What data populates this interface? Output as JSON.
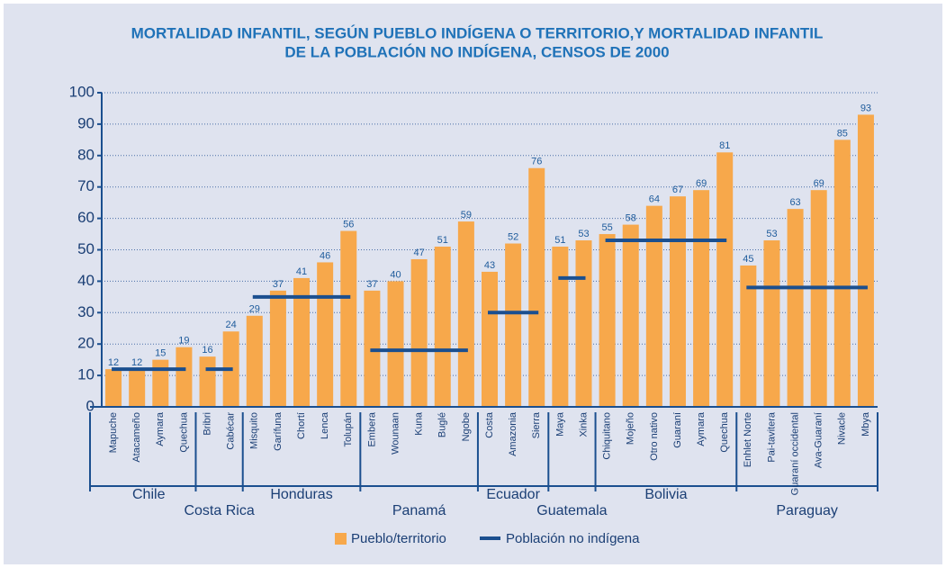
{
  "chart_data": {
    "type": "bar",
    "title": [
      "MORTALIDAD INFANTIL, SEGÚN PUEBLO INDÍGENA O TERRITORIO,Y MORTALIDAD INFANTIL",
      "DE LA POBLACIÓN NO INDÍGENA, CENSOS DE 2000"
    ],
    "series": [
      {
        "name": "Pueblo/territorio",
        "color": "#f7a84b"
      },
      {
        "name": "Población no indígena",
        "color": "#1b4f8f"
      }
    ],
    "ylim": [
      0,
      100
    ],
    "yticks": [
      0,
      10,
      20,
      30,
      40,
      50,
      60,
      70,
      80,
      90,
      100
    ],
    "grid": true,
    "groups": [
      {
        "name": "Chile",
        "line": 12,
        "categories": [
          "Mapuche",
          "Atacameño",
          "Aymara",
          "Quechua"
        ],
        "values": [
          12,
          12,
          15,
          19
        ]
      },
      {
        "name": "Costa Rica",
        "line": 12,
        "categories": [
          "Bribri",
          "Cabécar"
        ],
        "values": [
          16,
          24
        ]
      },
      {
        "name": "Honduras",
        "line": 35,
        "categories": [
          "Misquito",
          "Garífuna",
          "Chortí",
          "Lenca",
          "Tolupán"
        ],
        "values": [
          29,
          37,
          41,
          46,
          56
        ]
      },
      {
        "name": "Panamá",
        "line": 18,
        "categories": [
          "Embera",
          "Wounaan",
          "Kuna",
          "Buglé",
          "Ngobe"
        ],
        "values": [
          37,
          40,
          47,
          51,
          59
        ]
      },
      {
        "name": "Ecuador",
        "line": 30,
        "categories": [
          "Costa",
          "Amazonia",
          "Sierra"
        ],
        "values": [
          43,
          52,
          76
        ]
      },
      {
        "name": "Guatemala",
        "line": 41,
        "categories": [
          "Maya",
          "Xinka"
        ],
        "values": [
          51,
          53
        ]
      },
      {
        "name": "Bolivia",
        "line": 53,
        "categories": [
          "Chiquitano",
          "Mojeño",
          "Otro nativo",
          "Guaraní",
          "Aymara",
          "Quechua"
        ],
        "values": [
          55,
          58,
          64,
          67,
          69,
          81
        ]
      },
      {
        "name": "Paraguay",
        "line": 38,
        "categories": [
          "Enhlet Norte",
          "Pai-tavitera",
          "Guaraní occidental",
          "Ava-Guaraní",
          "Nivacle",
          "Mbya"
        ],
        "values": [
          45,
          53,
          63,
          69,
          85,
          93
        ]
      }
    ]
  }
}
